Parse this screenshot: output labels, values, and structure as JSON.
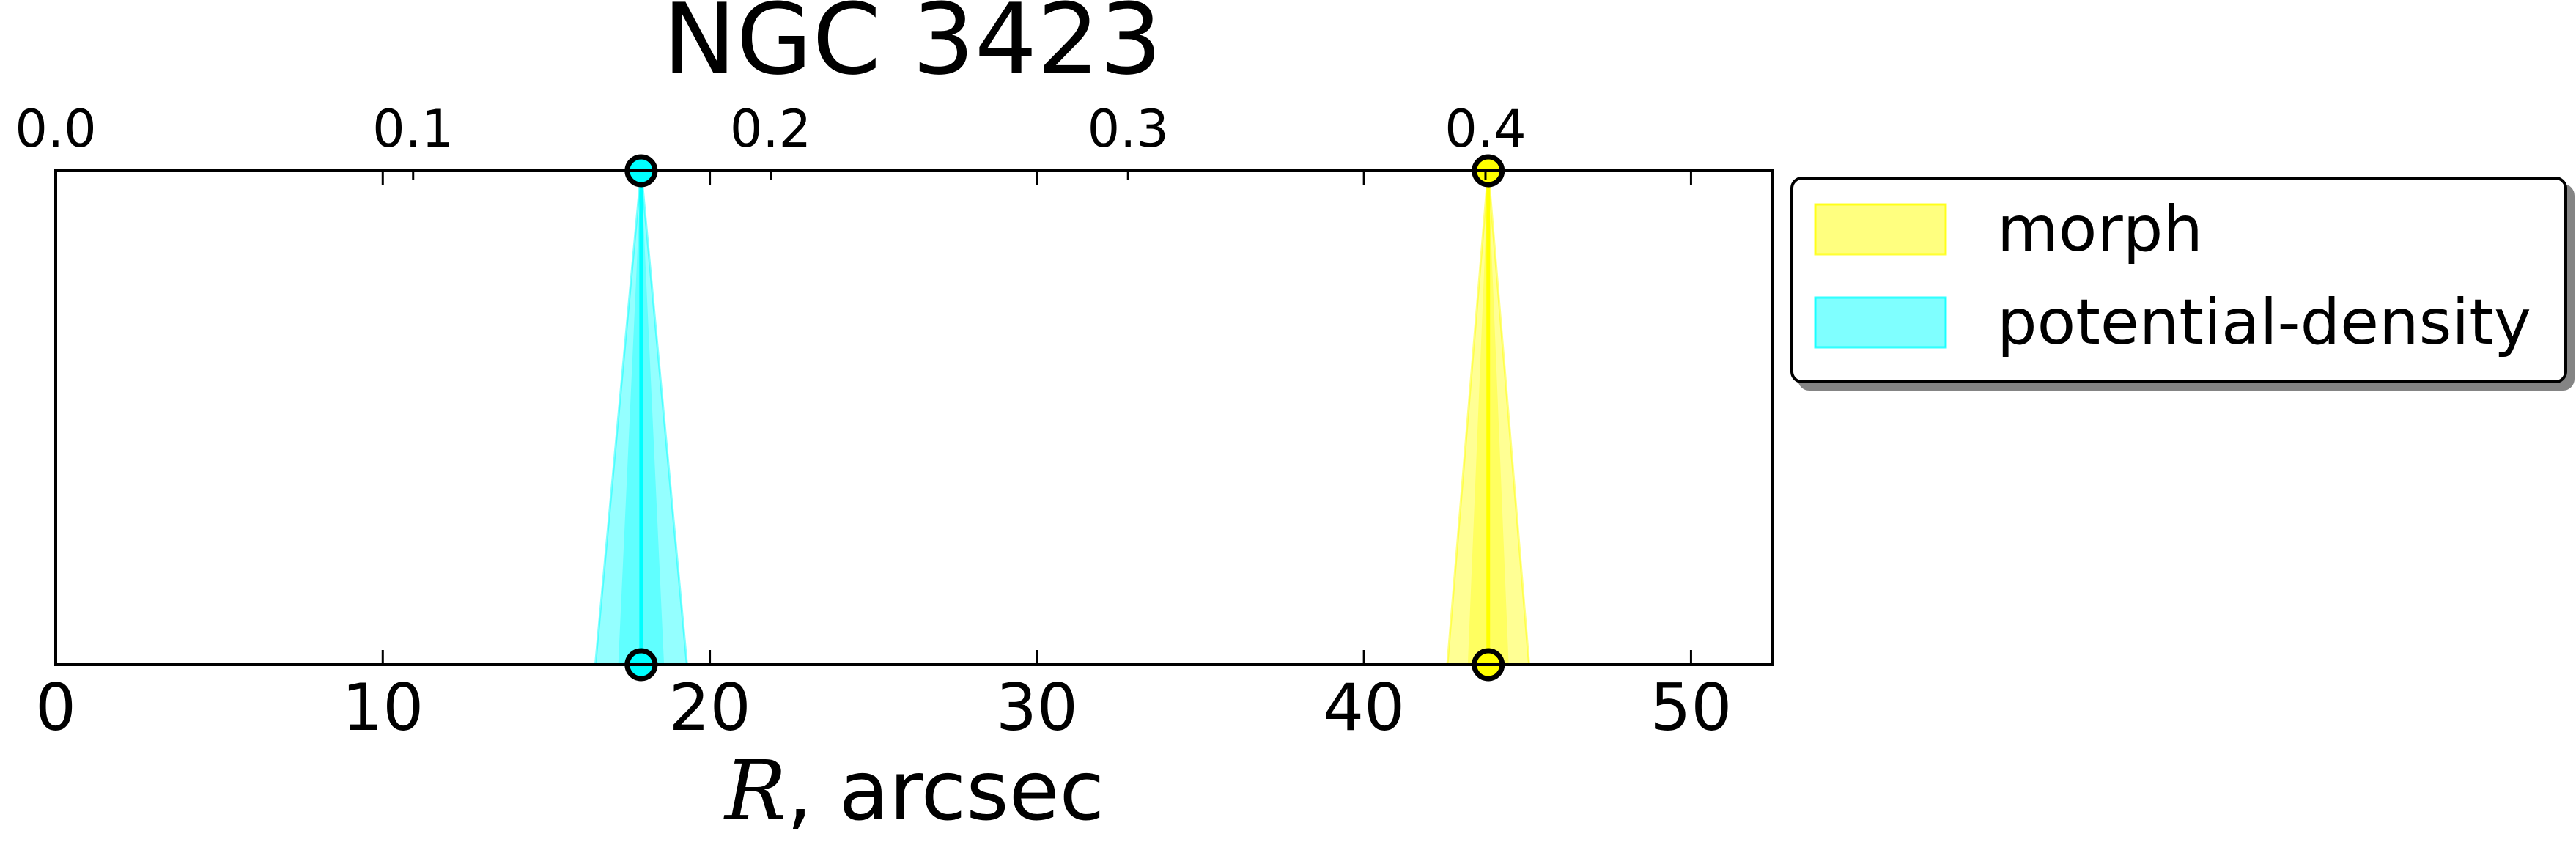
{
  "chart_data": {
    "type": "area",
    "title": "NGC 3423",
    "xlabel_symbol": "R",
    "xlabel_rest": ", arcsec",
    "xlim": [
      0,
      52.5
    ],
    "xticks": [
      0,
      10,
      20,
      30,
      40,
      50
    ],
    "top_axis": {
      "scale_per_arcsec": 0.00915,
      "ticks": [
        "0.0",
        "0.1",
        "0.2",
        "0.3",
        "0.4"
      ]
    },
    "grid": false,
    "legend_position": "outside-right",
    "series": [
      {
        "name": "morph",
        "color": "#ffff00",
        "center": 43.8,
        "half_width": 1.25
      },
      {
        "name": "potential-density",
        "color": "#00ffff",
        "center": 17.9,
        "half_width": 1.4
      }
    ]
  }
}
